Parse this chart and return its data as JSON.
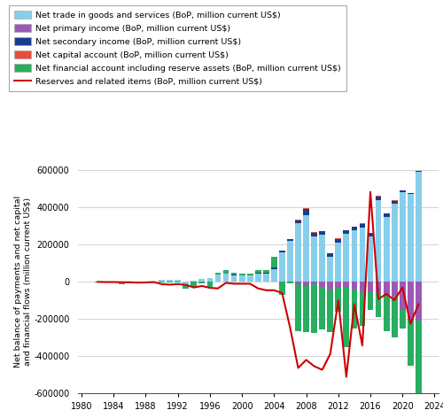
{
  "years": [
    1982,
    1983,
    1984,
    1985,
    1986,
    1987,
    1988,
    1989,
    1990,
    1991,
    1992,
    1993,
    1994,
    1995,
    1996,
    1997,
    1998,
    1999,
    2000,
    2001,
    2002,
    2003,
    2004,
    2005,
    2006,
    2007,
    2008,
    2009,
    2010,
    2011,
    2012,
    2013,
    2014,
    2015,
    2016,
    2017,
    2018,
    2019,
    2020,
    2021,
    2022
  ],
  "net_trade": [
    3000,
    2000,
    1000,
    -9000,
    -7000,
    -4000,
    -6000,
    -6000,
    12000,
    13000,
    10000,
    -12000,
    8000,
    18000,
    20000,
    40000,
    43000,
    35000,
    34000,
    34000,
    44000,
    45000,
    68000,
    160000,
    218000,
    315000,
    360000,
    243000,
    254000,
    136000,
    213000,
    258000,
    277000,
    293000,
    245000,
    441000,
    351000,
    420000,
    480000,
    470000,
    590000
  ],
  "net_primary": [
    0,
    0,
    0,
    0,
    0,
    0,
    0,
    0,
    0,
    0,
    0,
    0,
    0,
    0,
    0,
    0,
    0,
    0,
    0,
    0,
    0,
    0,
    0,
    0,
    0,
    -15000,
    -20000,
    -15000,
    -25000,
    -40000,
    -30000,
    -30000,
    -40000,
    -50000,
    -55000,
    -60000,
    -70000,
    -80000,
    -150000,
    -200000,
    -210000
  ],
  "net_secondary": [
    0,
    0,
    0,
    0,
    0,
    0,
    0,
    0,
    0,
    0,
    0,
    0,
    0,
    0,
    0,
    0,
    3000,
    3000,
    3000,
    3000,
    3000,
    5000,
    8000,
    8000,
    12000,
    15000,
    30000,
    20000,
    18000,
    18000,
    18000,
    18000,
    18000,
    18000,
    18000,
    18000,
    15000,
    15000,
    10000,
    5000,
    5000
  ],
  "net_capital": [
    0,
    0,
    0,
    0,
    0,
    0,
    0,
    0,
    0,
    0,
    0,
    0,
    0,
    0,
    0,
    0,
    0,
    0,
    0,
    0,
    0,
    0,
    2000,
    2000,
    2000,
    2000,
    5000,
    3000,
    2000,
    2000,
    2000,
    2000,
    2000,
    2000,
    2000,
    2000,
    2000,
    2000,
    1000,
    1000,
    1000
  ],
  "net_financial": [
    -2000,
    -1000,
    -1000,
    -3000,
    -2000,
    -2000,
    -2000,
    -2000,
    -5000,
    -5000,
    -5000,
    -25000,
    -25000,
    -10000,
    -25000,
    10000,
    15000,
    10000,
    5000,
    5000,
    15000,
    15000,
    55000,
    -70000,
    -10000,
    -250000,
    -250000,
    -260000,
    -230000,
    -230000,
    -130000,
    -320000,
    -210000,
    -185000,
    -95000,
    -130000,
    -195000,
    -220000,
    -100000,
    -250000,
    -470000
  ],
  "reserves": [
    0,
    -1000,
    -1000,
    -2000,
    -2000,
    -4000,
    -3000,
    -1000,
    -12000,
    -15000,
    -12000,
    -16000,
    -30000,
    -22000,
    -32000,
    -35000,
    -5000,
    -10000,
    -10000,
    -10000,
    -35000,
    -45000,
    -45000,
    -60000,
    -247000,
    -462000,
    -419000,
    -453000,
    -472000,
    -387000,
    -99000,
    -510000,
    -120000,
    -342000,
    483000,
    -92000,
    -65000,
    -98000,
    -30000,
    -225000,
    -120000
  ],
  "color_trade": "#87CEEB",
  "color_primary": "#9B59B6",
  "color_secondary": "#1A3C8C",
  "color_capital": "#E74C3C",
  "color_financial": "#27AE60",
  "color_reserves_line": "#CC0000",
  "ylabel": "Net balance of payments and net capital\nand financial flows (million current US$)",
  "ylim": [
    -600000,
    600000
  ],
  "yticks": [
    -600000,
    -400000,
    -200000,
    0,
    200000,
    400000,
    600000
  ],
  "xtick_years": [
    1980,
    1984,
    1988,
    1992,
    1996,
    2000,
    2004,
    2008,
    2012,
    2016,
    2020,
    2024
  ],
  "xlim": [
    1979.5,
    2024.5
  ],
  "legend_labels": [
    "Net trade in goods and services (BoP, million current US$)",
    "Net primary income (BoP, million current US$)",
    "Net secondary income (BoP, million current US$)",
    "Net capital account (BoP, million current US$)",
    "Net financial account including reserve assets (BoP, million current US$)",
    "Reserves and related items (BoP, million current US$)"
  ]
}
